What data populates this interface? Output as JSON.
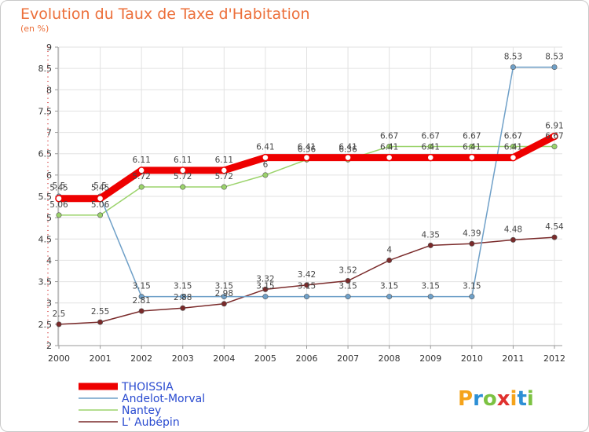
{
  "chart_data": {
    "type": "line",
    "title": "Evolution du Taux de Taxe d'Habitation",
    "subtitle": "(en %)",
    "categories": [
      "2000",
      "2001",
      "2002",
      "2003",
      "2004",
      "2005",
      "2006",
      "2007",
      "2008",
      "2009",
      "2010",
      "2011",
      "2012"
    ],
    "ylim": [
      2,
      9
    ],
    "yticks": [
      "2",
      "2.5",
      "3",
      "3.5",
      "4",
      "4.5",
      "5",
      "5.5",
      "6",
      "6.5",
      "7",
      "7.5",
      "8",
      "8.5",
      "9"
    ],
    "grid": true,
    "legend_position": "bottom-left",
    "series": [
      {
        "name": "THOISSIA",
        "color": "#ee0000",
        "values": [
          5.45,
          5.45,
          6.11,
          6.11,
          6.11,
          6.41,
          6.41,
          6.41,
          6.41,
          6.41,
          6.41,
          6.41,
          6.91
        ],
        "labels": [
          "5.45",
          "5.45",
          "6.11",
          "6.11",
          "6.11",
          "6.41",
          "6.41",
          "6.41",
          "6.41",
          "6.41",
          "6.41",
          "6.41",
          "6.91"
        ]
      },
      {
        "name": "Andelot-Morval",
        "color": "#6fa0c8",
        "values": [
          5.5,
          5.5,
          3.15,
          3.15,
          3.15,
          3.15,
          3.15,
          3.15,
          3.15,
          3.15,
          3.15,
          8.53,
          8.53
        ],
        "labels": [
          "5.5",
          "5.5",
          "3.15",
          "3.15",
          "3.15",
          "3.15",
          "3.15",
          "3.15",
          "3.15",
          "3.15",
          "3.15",
          "8.53",
          "8.53"
        ]
      },
      {
        "name": "Nantey",
        "color": "#9bd36b",
        "values": [
          5.06,
          5.06,
          5.72,
          5.72,
          5.72,
          6,
          6.36,
          6.36,
          6.67,
          6.67,
          6.67,
          6.67,
          6.67
        ],
        "labels": [
          "5.06",
          "5.06",
          "5.72",
          "5.72",
          "5.72",
          "6",
          "6.36",
          "6.36",
          "6.67",
          "6.67",
          "6.67",
          "6.67",
          "6.67"
        ]
      },
      {
        "name": "L' Aubépin",
        "color": "#7a2a2a",
        "values": [
          2.5,
          2.55,
          2.81,
          2.88,
          2.98,
          3.32,
          3.42,
          3.52,
          4,
          4.35,
          4.39,
          4.48,
          4.54
        ],
        "labels": [
          "2.5",
          "2.55",
          "2.81",
          "2.88",
          "2.98",
          "3.32",
          "3.42",
          "3.52",
          "4",
          "4.35",
          "4.39",
          "4.48",
          "4.54"
        ]
      }
    ]
  },
  "logo": {
    "text": "Proxiti",
    "colors": [
      "#f5a31a",
      "#2d8fd5",
      "#7cc242",
      "#e0312e",
      "#f5a31a",
      "#2d8fd5",
      "#7cc242"
    ]
  }
}
